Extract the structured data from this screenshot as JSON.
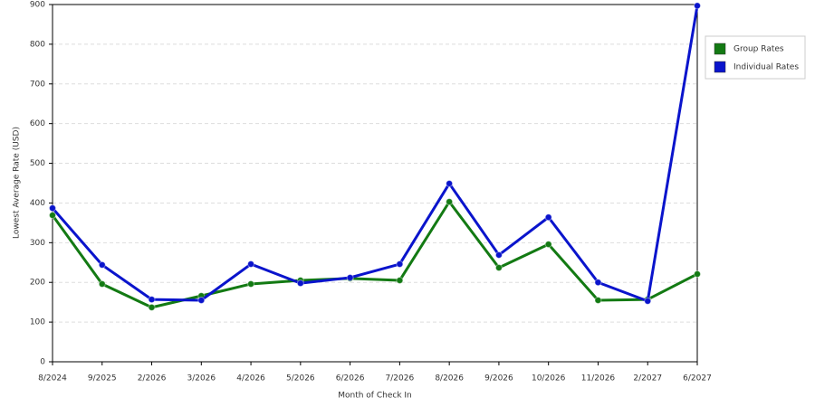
{
  "chart_data": {
    "type": "line",
    "x_label": "Month of Check In",
    "y_label": "Lowest Average Rate (USD)",
    "categories": [
      "8/2024",
      "9/2025",
      "2/2026",
      "3/2026",
      "4/2026",
      "5/2026",
      "6/2026",
      "7/2026",
      "8/2026",
      "9/2026",
      "10/2026",
      "11/2026",
      "2/2027",
      "6/2027"
    ],
    "series": [
      {
        "name": "Group Rates",
        "color": "#137a13",
        "values": [
          369,
          196,
          137,
          166,
          196,
          205,
          210,
          205,
          403,
          237,
          296,
          155,
          157,
          221
        ]
      },
      {
        "name": "Individual Rates",
        "color": "#0a14cc",
        "values": [
          387,
          244,
          157,
          155,
          246,
          198,
          212,
          246,
          449,
          269,
          364,
          200,
          153,
          897
        ]
      }
    ],
    "ylim": [
      0,
      900
    ],
    "yticks": [
      0,
      100,
      200,
      300,
      400,
      500,
      600,
      700,
      800,
      900
    ],
    "grid": true,
    "legend": "right"
  }
}
